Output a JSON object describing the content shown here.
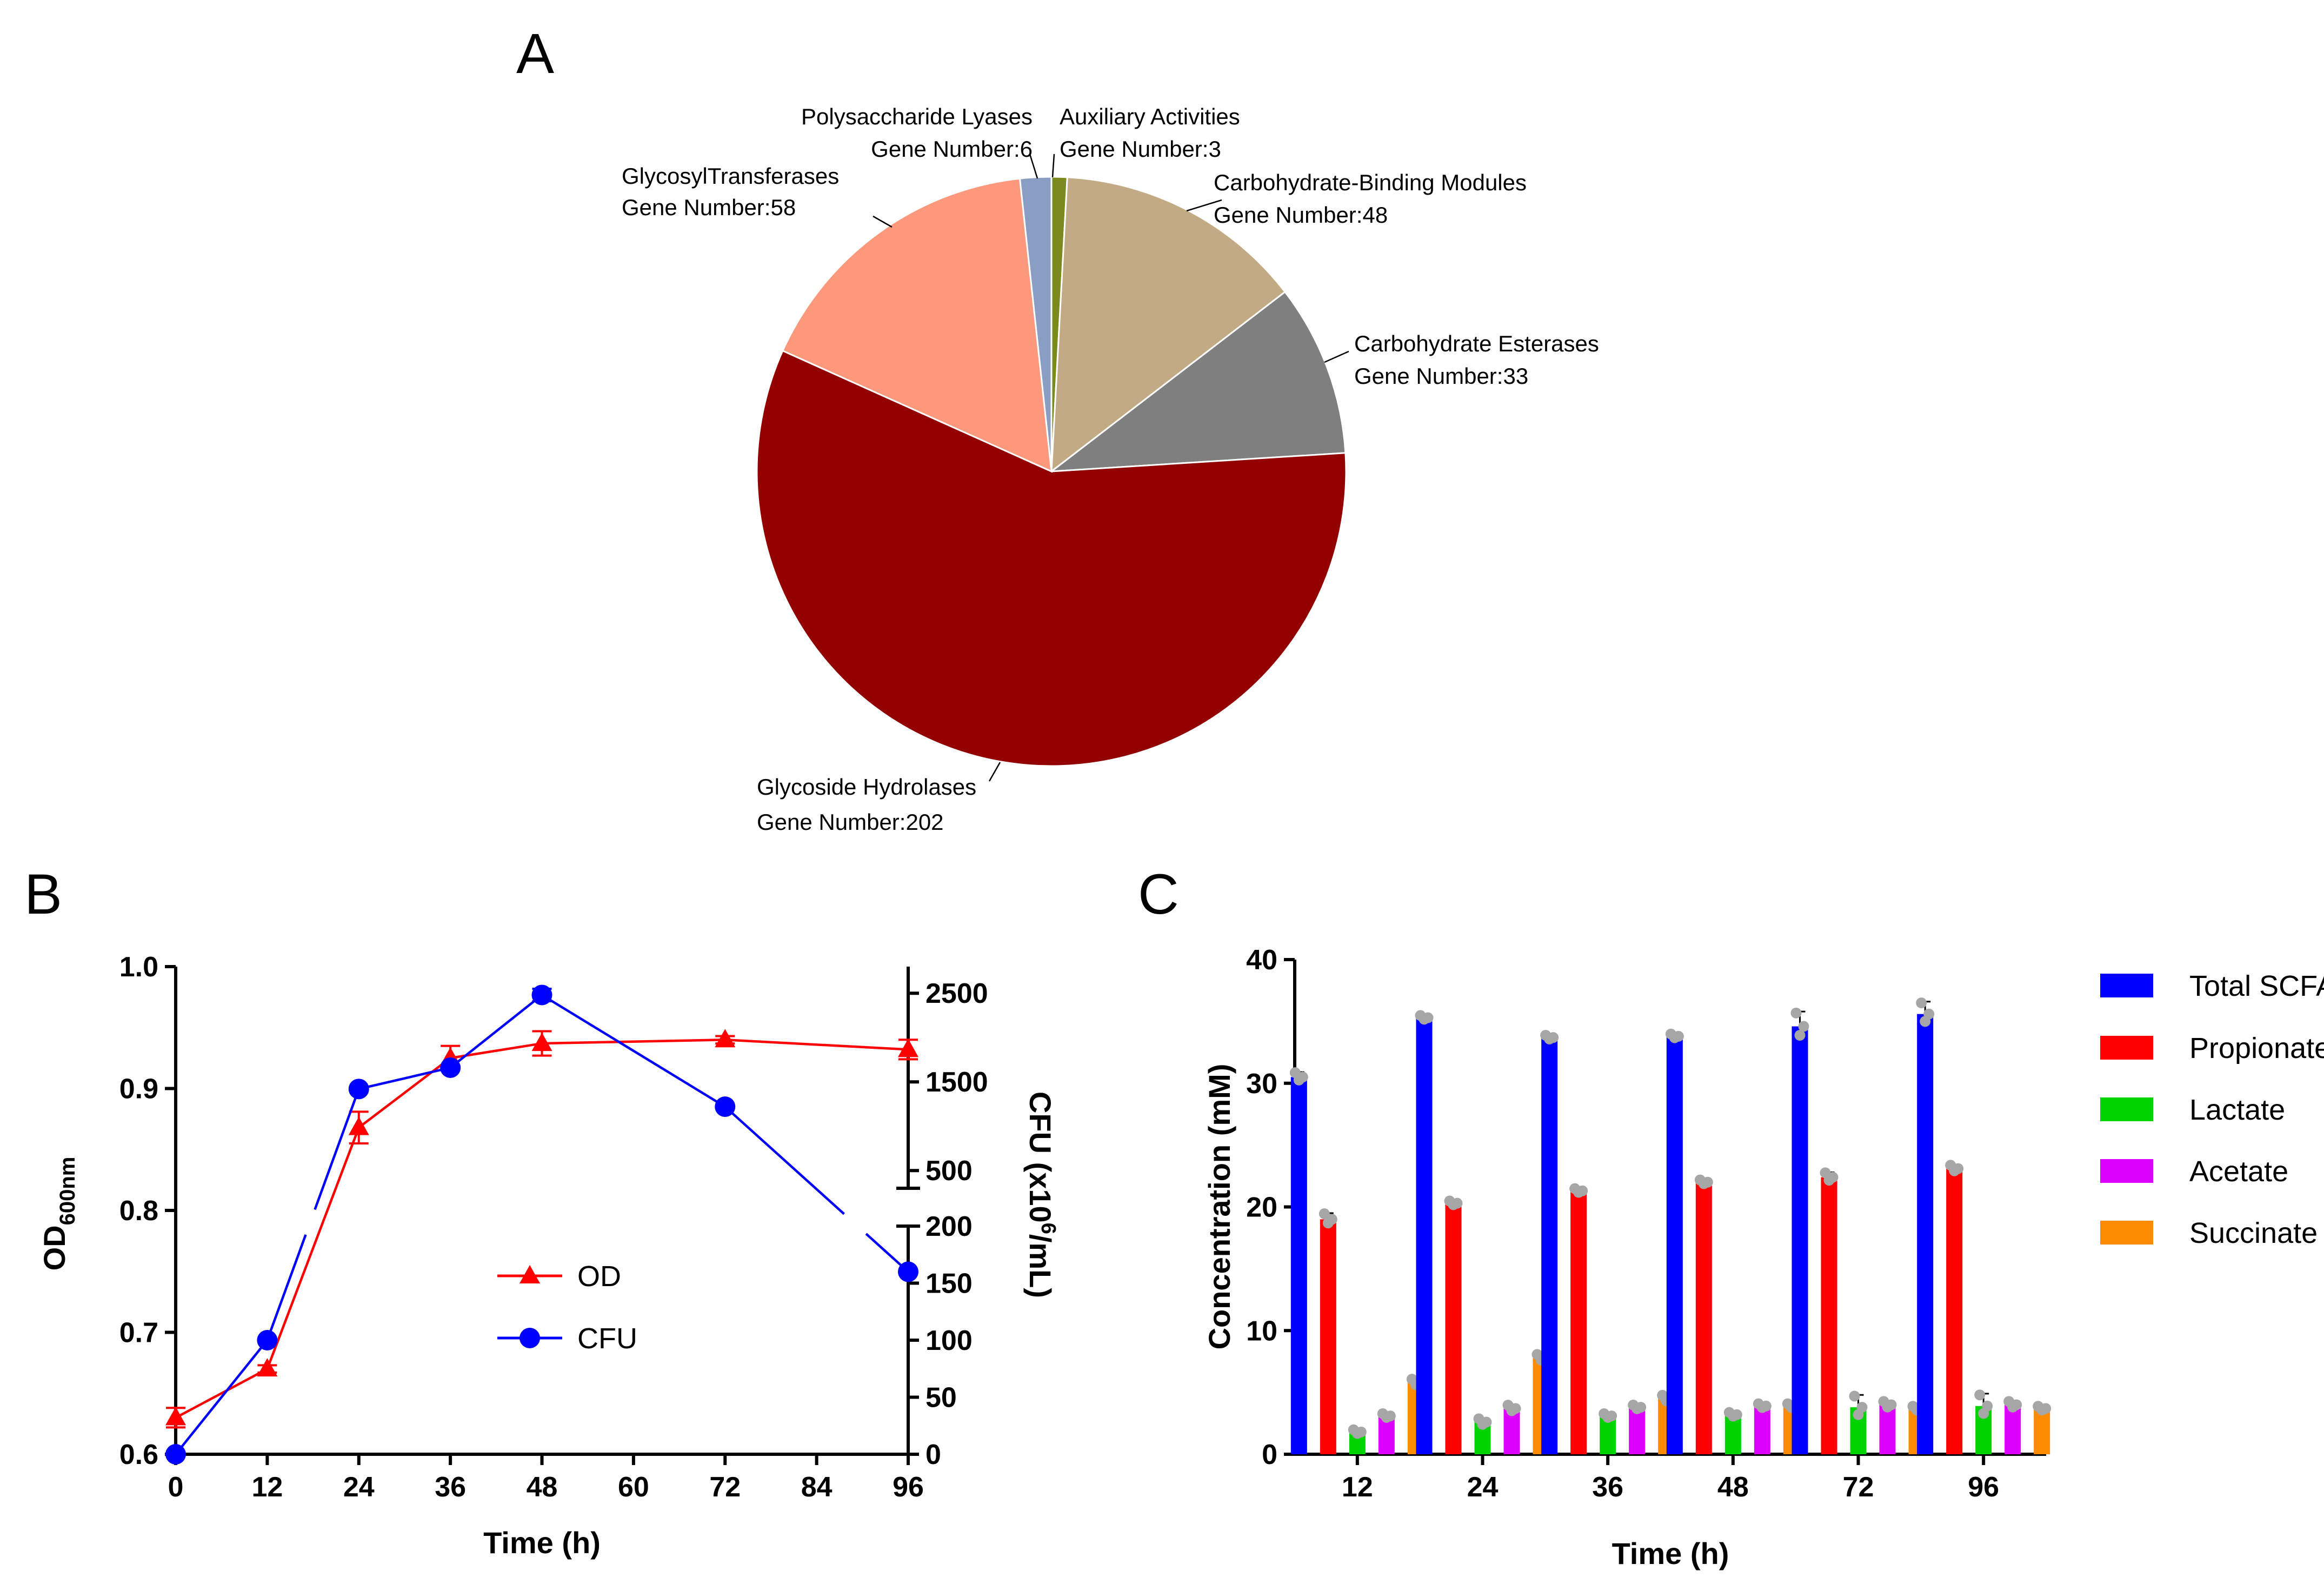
{
  "panels": {
    "a": "A",
    "b": "B",
    "c": "C"
  },
  "colors": {
    "pie": [
      "#8a9dc3",
      "#7a8a1e",
      "#c2ab84",
      "#7f7f7f",
      "#930000",
      "#fc997c"
    ],
    "od": "#ff0000",
    "cfu": "#0000ff",
    "c_series": [
      "#0000ff",
      "#ff0000",
      "#00d400",
      "#dd00ff",
      "#ff8c00"
    ],
    "points": "#a6a6a6"
  },
  "chart_data": [
    {
      "id": "A",
      "type": "pie",
      "slices": [
        {
          "name": "Polysaccharide Lyases",
          "label": "Gene Number:6",
          "value": 6
        },
        {
          "name": "Auxiliary Activities",
          "label": "Gene Number:3",
          "value": 3
        },
        {
          "name": "Carbohydrate-Binding Modules",
          "label": "Gene Number:48",
          "value": 48
        },
        {
          "name": "Carbohydrate Esterases",
          "label": "Gene Number:33",
          "value": 33
        },
        {
          "name": "Glycoside Hydrolases",
          "label": "Gene Number:202",
          "value": 202
        },
        {
          "name": "GlycosylTransferases",
          "label": "Gene Number:58",
          "value": 58
        }
      ]
    },
    {
      "id": "B",
      "type": "line",
      "xlabel": "Time (h)",
      "ylabel_left_main": "OD",
      "ylabel_left_sub": "600nm",
      "ylabel_right_main": "CFU (x10",
      "ylabel_right_sup": "6",
      "ylabel_right_end": "/mL)",
      "x_ticks": [
        "0",
        "12",
        "24",
        "36",
        "48",
        "60",
        "72",
        "84",
        "96"
      ],
      "xlim": [
        0,
        96
      ],
      "y_left_ticks": [
        "0.6",
        "0.7",
        "0.8",
        "0.9",
        "1.0"
      ],
      "ylim_left": [
        0.6,
        1.0
      ],
      "y_right_ticks_lower": [
        "0",
        "50",
        "100",
        "150",
        "200"
      ],
      "y_right_ticks_upper": [
        "500",
        "1500",
        "2500"
      ],
      "y_right_lower_range": [
        0,
        200
      ],
      "y_right_upper_range": [
        300,
        2800
      ],
      "series": [
        {
          "name": "OD",
          "marker": "triangle",
          "axis": "left",
          "x": [
            0,
            12,
            24,
            36,
            48,
            72,
            96
          ],
          "y": [
            0.63,
            0.67,
            0.868,
            0.925,
            0.937,
            0.94,
            0.932
          ],
          "err": [
            0.008,
            0.003,
            0.013,
            0.01,
            0.01,
            0.003,
            0.008
          ]
        },
        {
          "name": "CFU",
          "marker": "circle",
          "axis": "right",
          "x": [
            0,
            12,
            24,
            36,
            48,
            72,
            96
          ],
          "y": [
            0,
            100,
            1420,
            1660,
            2480,
            1220,
            160
          ],
          "err": [
            0,
            0,
            0,
            0,
            70,
            0,
            0
          ]
        }
      ]
    },
    {
      "id": "C",
      "type": "bar",
      "xlabel": "Time (h)",
      "ylabel": "Concentration (mM)",
      "categories": [
        "12",
        "24",
        "36",
        "48",
        "72",
        "96"
      ],
      "y_ticks": [
        "0",
        "10",
        "20",
        "30",
        "40"
      ],
      "ylim": [
        0,
        40
      ],
      "series": [
        {
          "name": "Total SCFAs",
          "values": [
            30.5,
            35.3,
            33.7,
            33.8,
            34.6,
            35.6
          ],
          "err": [
            0.4,
            0.2,
            0.2,
            0.2,
            1.2,
            1.0
          ]
        },
        {
          "name": "Propionate",
          "values": [
            19.0,
            20.3,
            21.3,
            22.0,
            22.4,
            23.1
          ],
          "err": [
            0.5,
            0.2,
            0.2,
            0.2,
            0.4,
            0.3
          ]
        },
        {
          "name": "Lactate",
          "values": [
            1.8,
            2.6,
            3.1,
            3.2,
            3.8,
            3.9
          ],
          "err": [
            0.2,
            0.3,
            0.2,
            0.2,
            1.0,
            1.0
          ]
        },
        {
          "name": "Acetate",
          "values": [
            3.1,
            3.7,
            3.8,
            3.9,
            4.0,
            4.0
          ],
          "err": [
            0.2,
            0.3,
            0.2,
            0.2,
            0.3,
            0.3
          ]
        },
        {
          "name": "Succinate",
          "values": [
            5.8,
            7.8,
            4.5,
            3.9,
            3.7,
            3.7
          ],
          "err": [
            0.3,
            0.3,
            0.3,
            0.2,
            0.2,
            0.2
          ]
        }
      ]
    }
  ]
}
